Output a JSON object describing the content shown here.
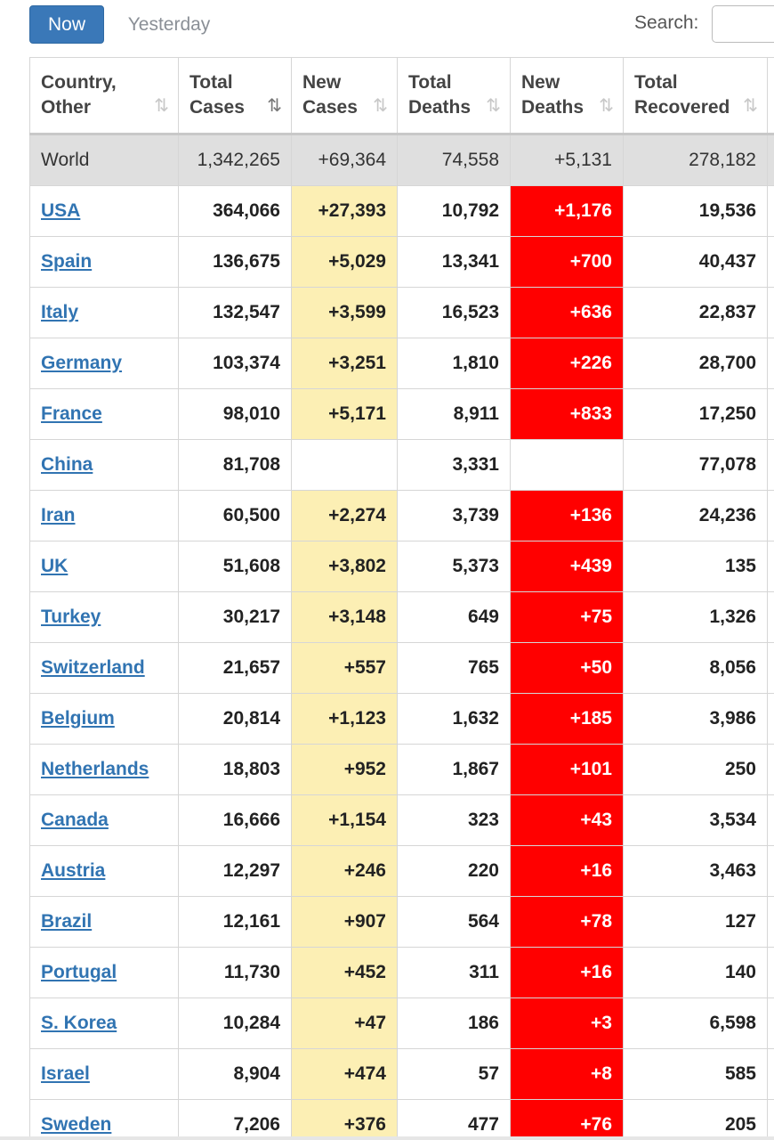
{
  "tabs": {
    "now": "Now",
    "yesterday": "Yesterday"
  },
  "search": {
    "label": "Search:",
    "value": ""
  },
  "headers": [
    {
      "line1": "Country,",
      "line2": "Other",
      "sort_icon": "sort-icon"
    },
    {
      "line1": "Total",
      "line2": "Cases",
      "sort_icon": "sort-desc-icon"
    },
    {
      "line1": "New",
      "line2": "Cases",
      "sort_icon": "sort-icon"
    },
    {
      "line1": "Total",
      "line2": "Deaths",
      "sort_icon": "sort-icon"
    },
    {
      "line1": "New",
      "line2": "Deaths",
      "sort_icon": "sort-icon"
    },
    {
      "line1": "Total",
      "line2": "Recovered",
      "sort_icon": "sort-icon"
    }
  ],
  "world": {
    "country": "World",
    "total_cases": "1,342,265",
    "new_cases": "+69,364",
    "total_deaths": "74,558",
    "new_deaths": "+5,131",
    "total_recovered": "278,182"
  },
  "rows": [
    {
      "country": "USA",
      "total_cases": "364,066",
      "new_cases": "+27,393",
      "total_deaths": "10,792",
      "new_deaths": "+1,176",
      "total_recovered": "19,536"
    },
    {
      "country": "Spain",
      "total_cases": "136,675",
      "new_cases": "+5,029",
      "total_deaths": "13,341",
      "new_deaths": "+700",
      "total_recovered": "40,437"
    },
    {
      "country": "Italy",
      "total_cases": "132,547",
      "new_cases": "+3,599",
      "total_deaths": "16,523",
      "new_deaths": "+636",
      "total_recovered": "22,837"
    },
    {
      "country": "Germany",
      "total_cases": "103,374",
      "new_cases": "+3,251",
      "total_deaths": "1,810",
      "new_deaths": "+226",
      "total_recovered": "28,700"
    },
    {
      "country": "France",
      "total_cases": "98,010",
      "new_cases": "+5,171",
      "total_deaths": "8,911",
      "new_deaths": "+833",
      "total_recovered": "17,250"
    },
    {
      "country": "China",
      "total_cases": "81,708",
      "new_cases": "",
      "total_deaths": "3,331",
      "new_deaths": "",
      "total_recovered": "77,078"
    },
    {
      "country": "Iran",
      "total_cases": "60,500",
      "new_cases": "+2,274",
      "total_deaths": "3,739",
      "new_deaths": "+136",
      "total_recovered": "24,236"
    },
    {
      "country": "UK",
      "total_cases": "51,608",
      "new_cases": "+3,802",
      "total_deaths": "5,373",
      "new_deaths": "+439",
      "total_recovered": "135"
    },
    {
      "country": "Turkey",
      "total_cases": "30,217",
      "new_cases": "+3,148",
      "total_deaths": "649",
      "new_deaths": "+75",
      "total_recovered": "1,326"
    },
    {
      "country": "Switzerland",
      "total_cases": "21,657",
      "new_cases": "+557",
      "total_deaths": "765",
      "new_deaths": "+50",
      "total_recovered": "8,056"
    },
    {
      "country": "Belgium",
      "total_cases": "20,814",
      "new_cases": "+1,123",
      "total_deaths": "1,632",
      "new_deaths": "+185",
      "total_recovered": "3,986"
    },
    {
      "country": "Netherlands",
      "total_cases": "18,803",
      "new_cases": "+952",
      "total_deaths": "1,867",
      "new_deaths": "+101",
      "total_recovered": "250"
    },
    {
      "country": "Canada",
      "total_cases": "16,666",
      "new_cases": "+1,154",
      "total_deaths": "323",
      "new_deaths": "+43",
      "total_recovered": "3,534"
    },
    {
      "country": "Austria",
      "total_cases": "12,297",
      "new_cases": "+246",
      "total_deaths": "220",
      "new_deaths": "+16",
      "total_recovered": "3,463"
    },
    {
      "country": "Brazil",
      "total_cases": "12,161",
      "new_cases": "+907",
      "total_deaths": "564",
      "new_deaths": "+78",
      "total_recovered": "127"
    },
    {
      "country": "Portugal",
      "total_cases": "11,730",
      "new_cases": "+452",
      "total_deaths": "311",
      "new_deaths": "+16",
      "total_recovered": "140"
    },
    {
      "country": "S. Korea",
      "total_cases": "10,284",
      "new_cases": "+47",
      "total_deaths": "186",
      "new_deaths": "+3",
      "total_recovered": "6,598"
    },
    {
      "country": "Israel",
      "total_cases": "8,904",
      "new_cases": "+474",
      "total_deaths": "57",
      "new_deaths": "+8",
      "total_recovered": "585"
    },
    {
      "country": "Sweden",
      "total_cases": "7,206",
      "new_cases": "+376",
      "total_deaths": "477",
      "new_deaths": "+76",
      "total_recovered": "205"
    }
  ],
  "colors": {
    "tab_active": "#3a78b8",
    "link": "#3174b2",
    "new_cases_bg": "#fcefb4",
    "new_deaths_bg": "#ff0000",
    "world_row_bg": "#dfdfdf"
  }
}
